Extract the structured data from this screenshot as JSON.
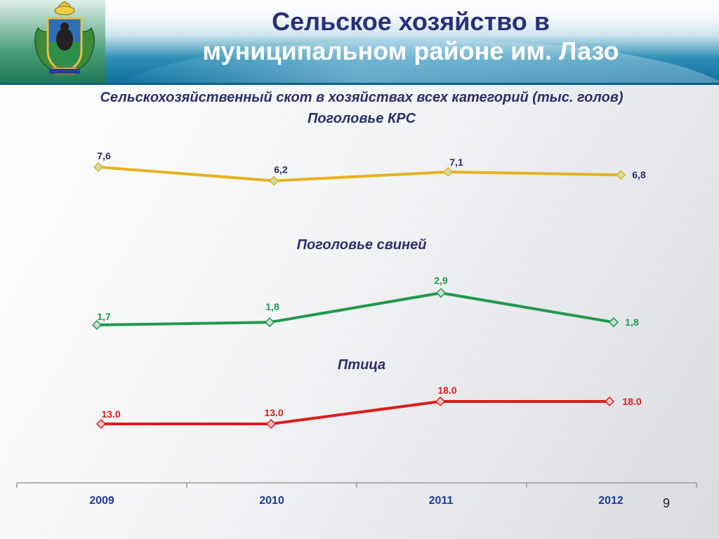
{
  "header": {
    "title_line1": "Сельское хозяйство в",
    "title_line2": "муниципальном районе им. Лазо",
    "emblem_icon": "khabarovsk-coat-of-arms"
  },
  "subtitle": "Сельскохозяйственный скот в хозяйствах всех категорий (тыс. голов)",
  "page_number": "9",
  "chart_data": {
    "type": "line",
    "categories": [
      "2009",
      "2010",
      "2011",
      "2012"
    ],
    "series": [
      {
        "name": "Поголовье КРС",
        "values": [
          7.6,
          6.2,
          7.1,
          6.8
        ],
        "labels": [
          "7,6",
          "6,2",
          "7,1",
          "6,8"
        ],
        "color": "#e6b21e",
        "marker_color": "#c9dfa8"
      },
      {
        "name": "Поголовье свиней",
        "values": [
          1.7,
          1.8,
          2.9,
          1.8
        ],
        "labels": [
          "1,7",
          "1,8",
          "2,9",
          "1,8"
        ],
        "color": "#1f9a4c",
        "marker_color": "#c7e0d0"
      },
      {
        "name": "Птица",
        "values": [
          13.0,
          13.0,
          18.0,
          18.0
        ],
        "labels": [
          "13.0",
          "13.0",
          "18.0",
          "18.0"
        ],
        "color": "#e01b1b",
        "marker_color": "#f4c4c4"
      }
    ]
  }
}
